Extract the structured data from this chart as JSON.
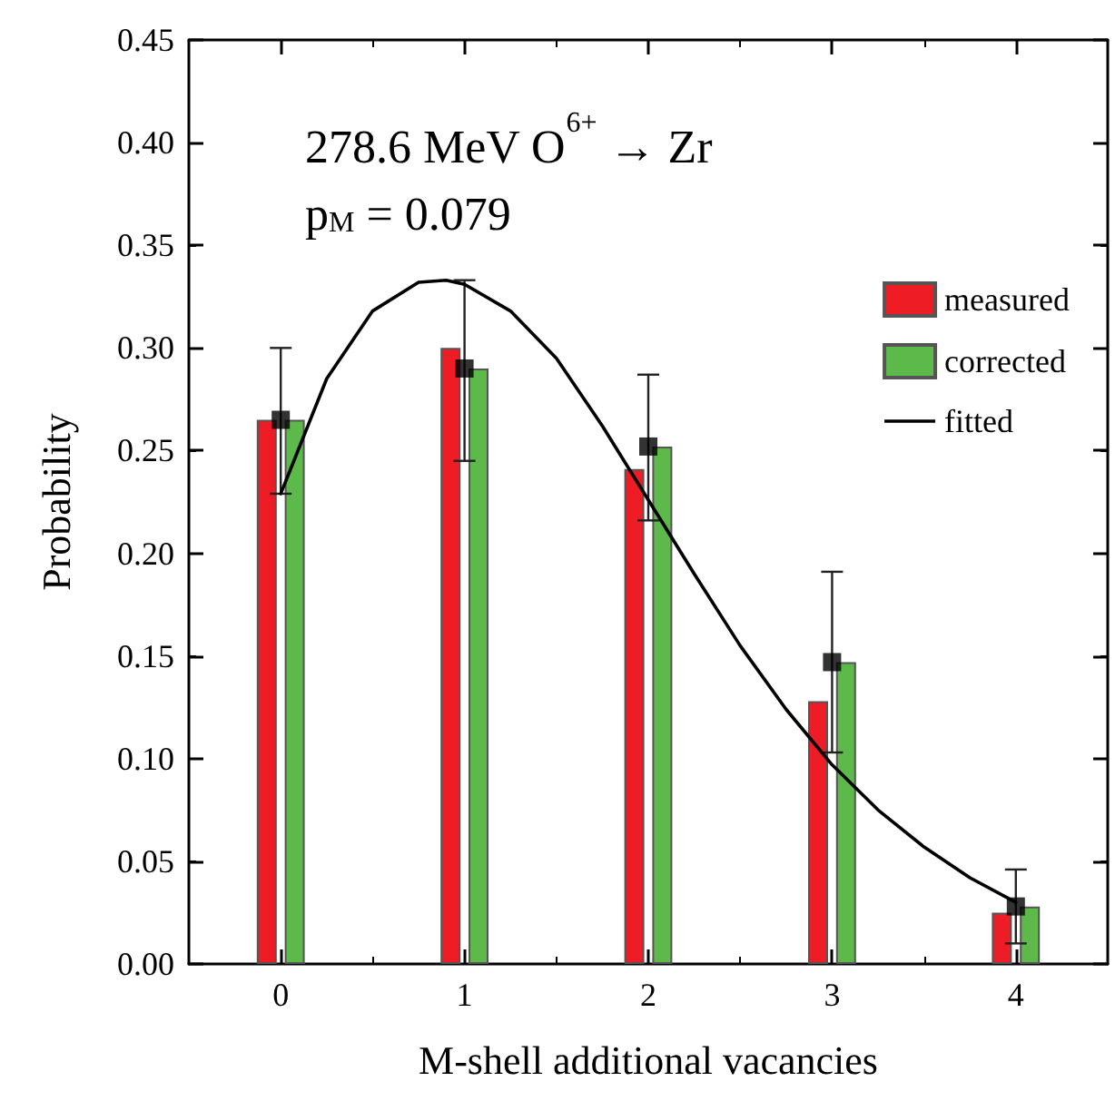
{
  "chart_data": {
    "type": "bar",
    "xlabel": "M-shell additional vacancies",
    "ylabel": "Probability",
    "annotations": [
      "278.6 MeV O$^{6+}$ → Zr",
      "p$_{M}$ = 0.079"
    ],
    "x": [
      0,
      1,
      2,
      3,
      4
    ],
    "series": [
      {
        "name": "measured",
        "color": "#ee1c25",
        "values": [
          0.265,
          0.3,
          0.241,
          0.128,
          0.025
        ]
      },
      {
        "name": "corrected",
        "color": "#5db94a",
        "values": [
          0.265,
          0.29,
          0.252,
          0.147,
          0.028
        ]
      },
      {
        "type": "scatter",
        "color": "#000000",
        "marker": "square",
        "values": [
          0.265,
          0.29,
          0.252,
          0.147,
          0.028
        ],
        "errors": [
          [
            0.229,
            0.3
          ],
          [
            0.245,
            0.333
          ],
          [
            0.216,
            0.287
          ],
          [
            0.103,
            0.191
          ],
          [
            0.01,
            0.046
          ]
        ]
      },
      {
        "name": "fitted",
        "type": "line",
        "color": "#000000",
        "line_style": "solid",
        "marker": "none",
        "x": [
          0,
          0.25,
          0.5,
          0.75,
          0.9,
          1,
          1.25,
          1.5,
          1.75,
          2,
          2.25,
          2.5,
          2.75,
          3,
          3.25,
          3.5,
          3.75,
          4
        ],
        "values": [
          0.229,
          0.285,
          0.318,
          0.332,
          0.333,
          0.331,
          0.318,
          0.295,
          0.262,
          0.226,
          0.19,
          0.155,
          0.124,
          0.097,
          0.075,
          0.057,
          0.042,
          0.03
        ]
      }
    ],
    "xlim": [
      -0.5,
      4.5
    ],
    "xticks": [
      0,
      1,
      2,
      3,
      4
    ],
    "ylim": [
      0,
      0.45
    ],
    "yticks": [
      {
        "value": 0,
        "label": "0.00"
      },
      {
        "value": 0.05,
        "label": "0.05"
      },
      {
        "value": 0.1,
        "label": "0.10"
      },
      {
        "value": 0.15,
        "label": "0.15"
      },
      {
        "value": 0.2,
        "label": "0.20"
      },
      {
        "value": 0.25,
        "label": "0.25"
      },
      {
        "value": 0.3,
        "label": "0.30"
      },
      {
        "value": 0.35,
        "label": "0.35"
      },
      {
        "value": 0.4,
        "label": "0.40"
      },
      {
        "value": 0.45,
        "label": "0.45"
      }
    ],
    "grid": false,
    "legend": "top right"
  }
}
